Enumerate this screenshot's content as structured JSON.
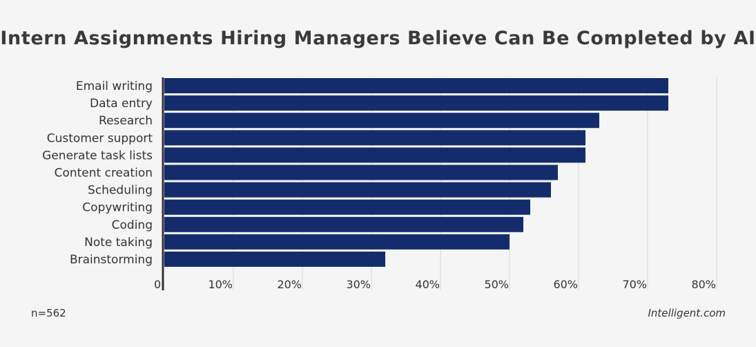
{
  "chart_data": {
    "type": "bar",
    "orientation": "horizontal",
    "title": "Intern Assignments Hiring Managers Believe Can Be Completed by AI",
    "categories": [
      "Email writing",
      "Data entry",
      "Research",
      "Customer support",
      "Generate task lists",
      "Content creation",
      "Scheduling",
      "Copywriting",
      "Coding",
      "Note taking",
      "Brainstorming"
    ],
    "values": [
      73,
      73,
      63,
      61,
      61,
      57,
      56,
      53,
      52,
      50,
      32
    ],
    "unit": "%",
    "xlim": [
      0,
      80
    ],
    "ticks": [
      "0",
      "10%",
      "20%",
      "30%",
      "40%",
      "50%",
      "60%",
      "70%",
      "80%"
    ],
    "grid": true,
    "bar_color": "#142c6b",
    "gridline_color": "#d6d6d6"
  },
  "footer": {
    "sample": "n=562",
    "source": "Intelligent.com"
  }
}
